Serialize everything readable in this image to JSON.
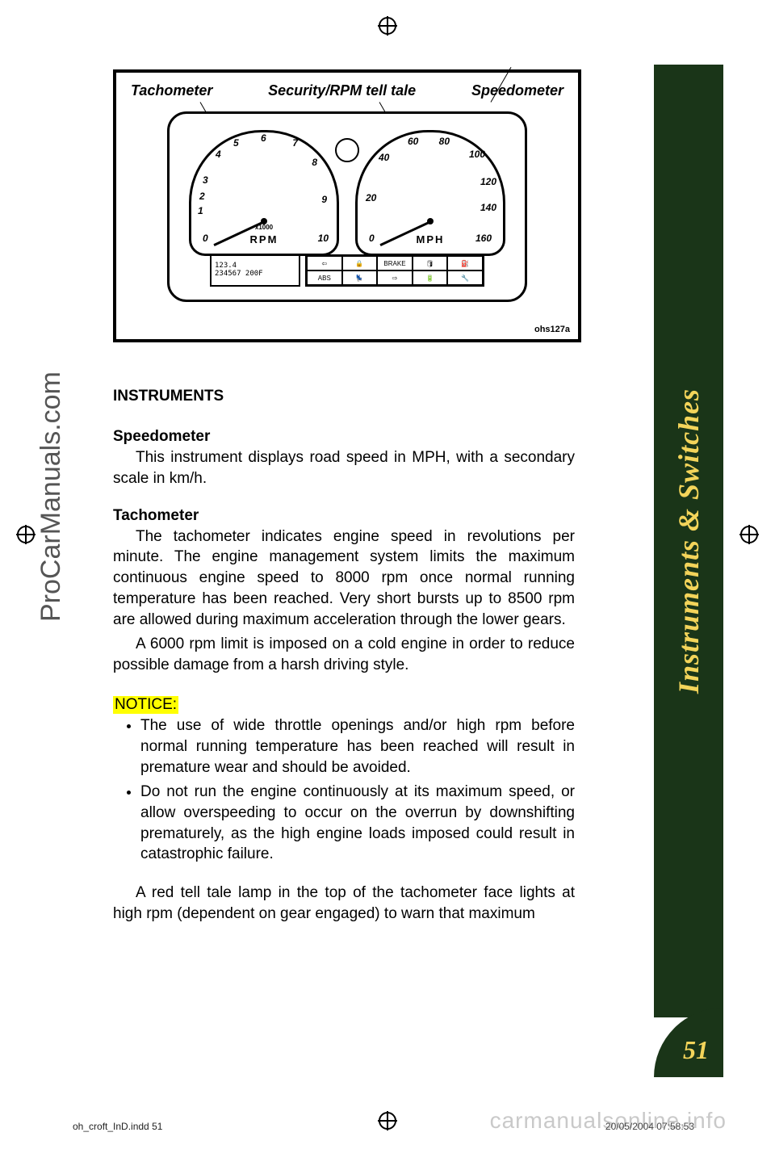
{
  "page": {
    "side_tab_label": "Instruments & Switches",
    "page_number": "51",
    "side_tab_bg": "#1a3518",
    "side_tab_text_color": "#f3d45a"
  },
  "diagram": {
    "labels": {
      "left": "Tachometer",
      "center": "Security/RPM tell tale",
      "right": "Speedometer"
    },
    "tachometer": {
      "unit": "RPM",
      "sub_label": "x1000",
      "ticks": [
        "0",
        "1",
        "2",
        "3",
        "4",
        "5",
        "6",
        "7",
        "8",
        "9",
        "10"
      ]
    },
    "speedometer": {
      "unit": "MPH",
      "ticks": [
        "0",
        "20",
        "40",
        "60",
        "80",
        "100",
        "120",
        "140",
        "160"
      ]
    },
    "lcd": {
      "line1": "123.4",
      "line2": "234567   200F"
    },
    "icon_row": [
      "⇦",
      "🔒",
      "BRAKE",
      "🛢",
      "⛽",
      "ABS",
      "💺",
      "⇨",
      "🔋",
      "🔧"
    ],
    "id": "ohs127a"
  },
  "body": {
    "section_title": "INSTRUMENTS",
    "speedometer": {
      "title": "Speedometer",
      "para1": "This instrument displays road speed in MPH, with a secondary scale in km/h."
    },
    "tachometer": {
      "title": "Tachometer",
      "para1": "The tachometer indicates engine speed in revolutions per minute. The engine management system limits the maximum continuous engine speed to 8000 rpm once normal running temperature has been reached. Very short bursts up to 8500 rpm are allowed during maximum acceleration through the lower gears.",
      "para2": "A 6000 rpm limit is imposed on a cold engine in order to reduce possible damage from a harsh driving style."
    },
    "notice_label": " NOTICE: ",
    "notices": [
      "The use of wide throttle openings and/or high rpm before normal running temperature has been reached will result in premature wear and should be avoided.",
      "Do not run the engine continuously at its maximum speed, or allow overspeeding to occur on the overrun by downshifting prematurely, as the high engine loads imposed could result in catastrophic failure."
    ],
    "tail_para": "A red tell tale lamp in the top of the tachometer face lights at high rpm (dependent on gear engaged) to warn that maximum"
  },
  "watermarks": {
    "side": "ProCarManuals.com",
    "footer": "carmanualsonline.info"
  },
  "footer": {
    "file": "oh_croft_InD.indd   51",
    "timestamp": "20/05/2004   07:58:53"
  }
}
